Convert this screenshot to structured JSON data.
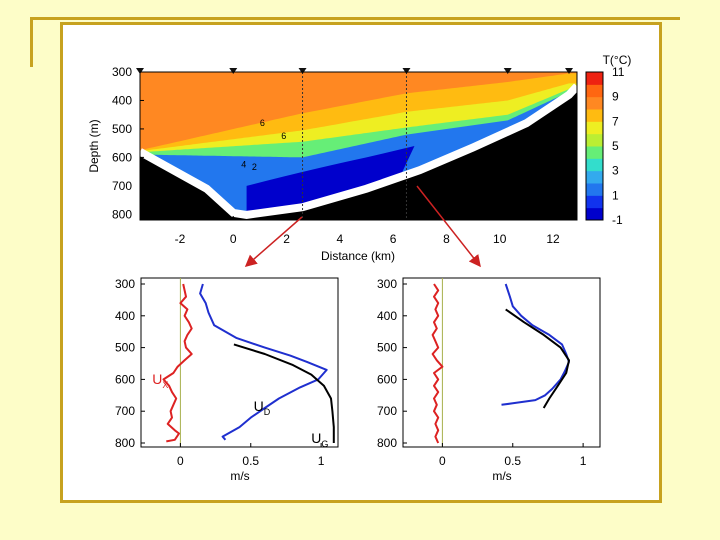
{
  "colors": {
    "frame": "#c7a21f",
    "background": "#fdfdc8",
    "ux_line": "#dd2222",
    "ud_line": "#1f2fcf",
    "ug_line": "#000000",
    "zero_line": "#a8b04c",
    "arrow": "#cc2222",
    "bottom": "#000000",
    "colorbar": [
      "#0000cc",
      "#1133ee",
      "#2277ee",
      "#33aaee",
      "#33ddcc",
      "#66ee77",
      "#bbee33",
      "#eeee22",
      "#ffbb11",
      "#ff8822",
      "#ff6611",
      "#ee2211"
    ]
  },
  "chart_data": [
    {
      "type": "heatmap",
      "title": "",
      "xlabel": "Distance (km)",
      "ylabel": "Depth (m)",
      "xlim": [
        -3.5,
        12.9
      ],
      "ylim": [
        820,
        300
      ],
      "x_ticks": [
        -2,
        0,
        2,
        4,
        6,
        8,
        10,
        12
      ],
      "y_ticks": [
        300,
        400,
        500,
        600,
        700,
        800
      ],
      "station_markers_x": [
        -3.5,
        0,
        2.6,
        6.5,
        10.3,
        12.6
      ],
      "profile_stations_x": [
        2.6,
        6.5
      ],
      "colorbar": {
        "label": "T(°C)",
        "ticks": [
          11,
          9,
          7,
          5,
          3,
          1,
          -1
        ],
        "range": [
          -1,
          11
        ]
      },
      "contour_labels": [
        {
          "label": "6",
          "x": 1.0,
          "depth": 490
        },
        {
          "label": "6",
          "x": 1.8,
          "depth": 535
        },
        {
          "label": "4",
          "x": 0.3,
          "depth": 636
        },
        {
          "label": "2",
          "x": 0.7,
          "depth": 645
        }
      ],
      "bottom_depth": [
        {
          "x": -3.5,
          "depth": 580
        },
        {
          "x": -1.0,
          "depth": 710
        },
        {
          "x": 0.0,
          "depth": 795
        },
        {
          "x": 0.5,
          "depth": 802
        },
        {
          "x": 2.6,
          "depth": 775
        },
        {
          "x": 5.0,
          "depth": 710
        },
        {
          "x": 7.0,
          "depth": 645
        },
        {
          "x": 9.0,
          "depth": 565
        },
        {
          "x": 11.0,
          "depth": 480
        },
        {
          "x": 12.6,
          "depth": 380
        },
        {
          "x": 12.9,
          "depth": 350
        }
      ],
      "isotherm_depths": [
        {
          "temp": 9,
          "depth": [
            {
              "x": -3.5,
              "depth": 575
            },
            {
              "x": 2.6,
              "depth": 445
            },
            {
              "x": 6.5,
              "depth": 375
            },
            {
              "x": 10.3,
              "depth": 335
            },
            {
              "x": 12.6,
              "depth": 305
            }
          ]
        },
        {
          "temp": 7,
          "depth": [
            {
              "x": -3.5,
              "depth": 578
            },
            {
              "x": 2.6,
              "depth": 505
            },
            {
              "x": 6.5,
              "depth": 440
            },
            {
              "x": 10.3,
              "depth": 400
            },
            {
              "x": 12.6,
              "depth": 340
            }
          ]
        },
        {
          "temp": 5,
          "depth": [
            {
              "x": -3.5,
              "depth": 582
            },
            {
              "x": 2.6,
              "depth": 545
            },
            {
              "x": 6.5,
              "depth": 495
            },
            {
              "x": 10.3,
              "depth": 450
            },
            {
              "x": 12.6,
              "depth": 360
            }
          ]
        },
        {
          "temp": 3,
          "depth": [
            {
              "x": -3.5,
              "depth": 590
            },
            {
              "x": 2.6,
              "depth": 600
            },
            {
              "x": 6.5,
              "depth": 520
            },
            {
              "x": 10.3,
              "depth": 470
            },
            {
              "x": 12.6,
              "depth": 370
            }
          ]
        }
      ]
    },
    {
      "type": "line",
      "title": "",
      "xlabel": "m/s",
      "ylabel": "",
      "xlim": [
        -0.28,
        1.12
      ],
      "ylim": [
        800,
        300
      ],
      "x_ticks": [
        "0",
        "0.5",
        "1"
      ],
      "x_tick_values": [
        0,
        0.5,
        1
      ],
      "y_ticks": [
        300,
        400,
        500,
        600,
        700,
        800
      ],
      "annotations": [
        {
          "text": "U",
          "sub": "X",
          "x": -0.2,
          "depth": 615
        },
        {
          "text": "U",
          "sub": "D",
          "x": 0.52,
          "depth": 700
        },
        {
          "text": "U",
          "sub": "G",
          "x": 0.93,
          "depth": 800
        }
      ],
      "series": [
        {
          "name": "UX",
          "points": [
            [
              0.02,
              300
            ],
            [
              0.03,
              320
            ],
            [
              0.04,
              340
            ],
            [
              0.0,
              360
            ],
            [
              0.05,
              380
            ],
            [
              0.03,
              400
            ],
            [
              0.06,
              420
            ],
            [
              0.08,
              440
            ],
            [
              0.05,
              460
            ],
            [
              0.03,
              480
            ],
            [
              0.04,
              500
            ],
            [
              0.08,
              520
            ],
            [
              0.03,
              540
            ],
            [
              -0.02,
              560
            ],
            [
              -0.05,
              580
            ],
            [
              -0.12,
              600
            ],
            [
              -0.08,
              620
            ],
            [
              -0.06,
              640
            ],
            [
              -0.03,
              660
            ],
            [
              -0.05,
              680
            ],
            [
              -0.07,
              700
            ],
            [
              -0.06,
              720
            ],
            [
              -0.09,
              740
            ],
            [
              -0.04,
              760
            ],
            [
              -0.01,
              770
            ],
            [
              -0.04,
              790
            ],
            [
              -0.1,
              795
            ]
          ]
        },
        {
          "name": "UD",
          "points": [
            [
              0.16,
              300
            ],
            [
              0.14,
              330
            ],
            [
              0.18,
              360
            ],
            [
              0.2,
              390
            ],
            [
              0.24,
              430
            ],
            [
              0.4,
              470
            ],
            [
              0.6,
              500
            ],
            [
              0.78,
              525
            ],
            [
              0.9,
              545
            ],
            [
              1.04,
              570
            ],
            [
              0.98,
              600
            ],
            [
              0.85,
              625
            ],
            [
              0.7,
              660
            ],
            [
              0.6,
              690
            ],
            [
              0.5,
              720
            ],
            [
              0.42,
              750
            ],
            [
              0.3,
              780
            ],
            [
              0.32,
              790
            ]
          ]
        },
        {
          "name": "UG",
          "points": [
            [
              0.38,
              490
            ],
            [
              0.6,
              520
            ],
            [
              0.8,
              555
            ],
            [
              0.93,
              585
            ],
            [
              1.02,
              620
            ],
            [
              1.07,
              660
            ],
            [
              1.08,
              700
            ],
            [
              1.09,
              750
            ],
            [
              1.09,
              800
            ]
          ]
        }
      ]
    },
    {
      "type": "line",
      "title": "",
      "xlabel": "m/s",
      "ylabel": "",
      "xlim": [
        -0.28,
        1.12
      ],
      "ylim": [
        800,
        300
      ],
      "x_ticks": [
        "0",
        "0.5",
        "1"
      ],
      "x_tick_values": [
        0,
        0.5,
        1
      ],
      "y_ticks": [
        300,
        400,
        500,
        600,
        700,
        800
      ],
      "series": [
        {
          "name": "UX",
          "points": [
            [
              -0.06,
              300
            ],
            [
              -0.03,
              320
            ],
            [
              -0.06,
              340
            ],
            [
              -0.03,
              360
            ],
            [
              -0.05,
              380
            ],
            [
              -0.03,
              400
            ],
            [
              -0.06,
              420
            ],
            [
              -0.04,
              440
            ],
            [
              -0.07,
              460
            ],
            [
              -0.05,
              480
            ],
            [
              -0.03,
              500
            ],
            [
              -0.07,
              520
            ],
            [
              -0.04,
              540
            ],
            [
              0.0,
              560
            ],
            [
              -0.06,
              580
            ],
            [
              -0.03,
              600
            ],
            [
              -0.06,
              620
            ],
            [
              -0.03,
              640
            ],
            [
              -0.06,
              660
            ],
            [
              -0.04,
              680
            ],
            [
              -0.06,
              700
            ],
            [
              -0.03,
              720
            ],
            [
              -0.05,
              740
            ],
            [
              -0.03,
              760
            ],
            [
              -0.05,
              780
            ],
            [
              -0.03,
              800
            ]
          ]
        },
        {
          "name": "UD",
          "points": [
            [
              0.45,
              300
            ],
            [
              0.48,
              340
            ],
            [
              0.5,
              370
            ],
            [
              0.56,
              400
            ],
            [
              0.64,
              430
            ],
            [
              0.76,
              460
            ],
            [
              0.85,
              490
            ],
            [
              0.88,
              520
            ],
            [
              0.9,
              545
            ],
            [
              0.87,
              575
            ],
            [
              0.84,
              600
            ],
            [
              0.78,
              630
            ],
            [
              0.73,
              650
            ],
            [
              0.66,
              665
            ],
            [
              0.5,
              675
            ],
            [
              0.42,
              680
            ]
          ]
        },
        {
          "name": "UG",
          "points": [
            [
              0.45,
              380
            ],
            [
              0.58,
              420
            ],
            [
              0.72,
              460
            ],
            [
              0.84,
              500
            ],
            [
              0.9,
              540
            ],
            [
              0.88,
              580
            ],
            [
              0.82,
              620
            ],
            [
              0.76,
              660
            ],
            [
              0.72,
              690
            ]
          ]
        }
      ]
    }
  ]
}
